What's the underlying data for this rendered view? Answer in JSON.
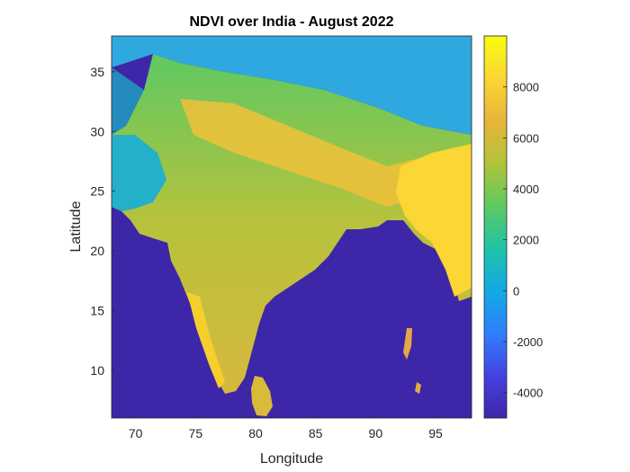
{
  "chart_data": {
    "type": "heatmap",
    "title": "NDVI over India - August 2022",
    "xlabel": "Longitude",
    "ylabel": "Latitude",
    "xlim": [
      68,
      98
    ],
    "ylim": [
      6,
      38
    ],
    "x_ticks": [
      70,
      75,
      80,
      85,
      90,
      95
    ],
    "y_ticks": [
      10,
      15,
      20,
      25,
      30,
      35
    ],
    "colorbar": {
      "range": [
        -5000,
        10000
      ],
      "ticks": [
        -4000,
        -2000,
        0,
        2000,
        4000,
        6000,
        8000
      ],
      "colormap": [
        "#3e26a8",
        "#4543e0",
        "#2f7ffb",
        "#12a9e4",
        "#1fc4a6",
        "#5ec962",
        "#b0c43a",
        "#e8b43a",
        "#fbd634",
        "#f9fb0e"
      ]
    },
    "water_color": "#3e26a8"
  }
}
